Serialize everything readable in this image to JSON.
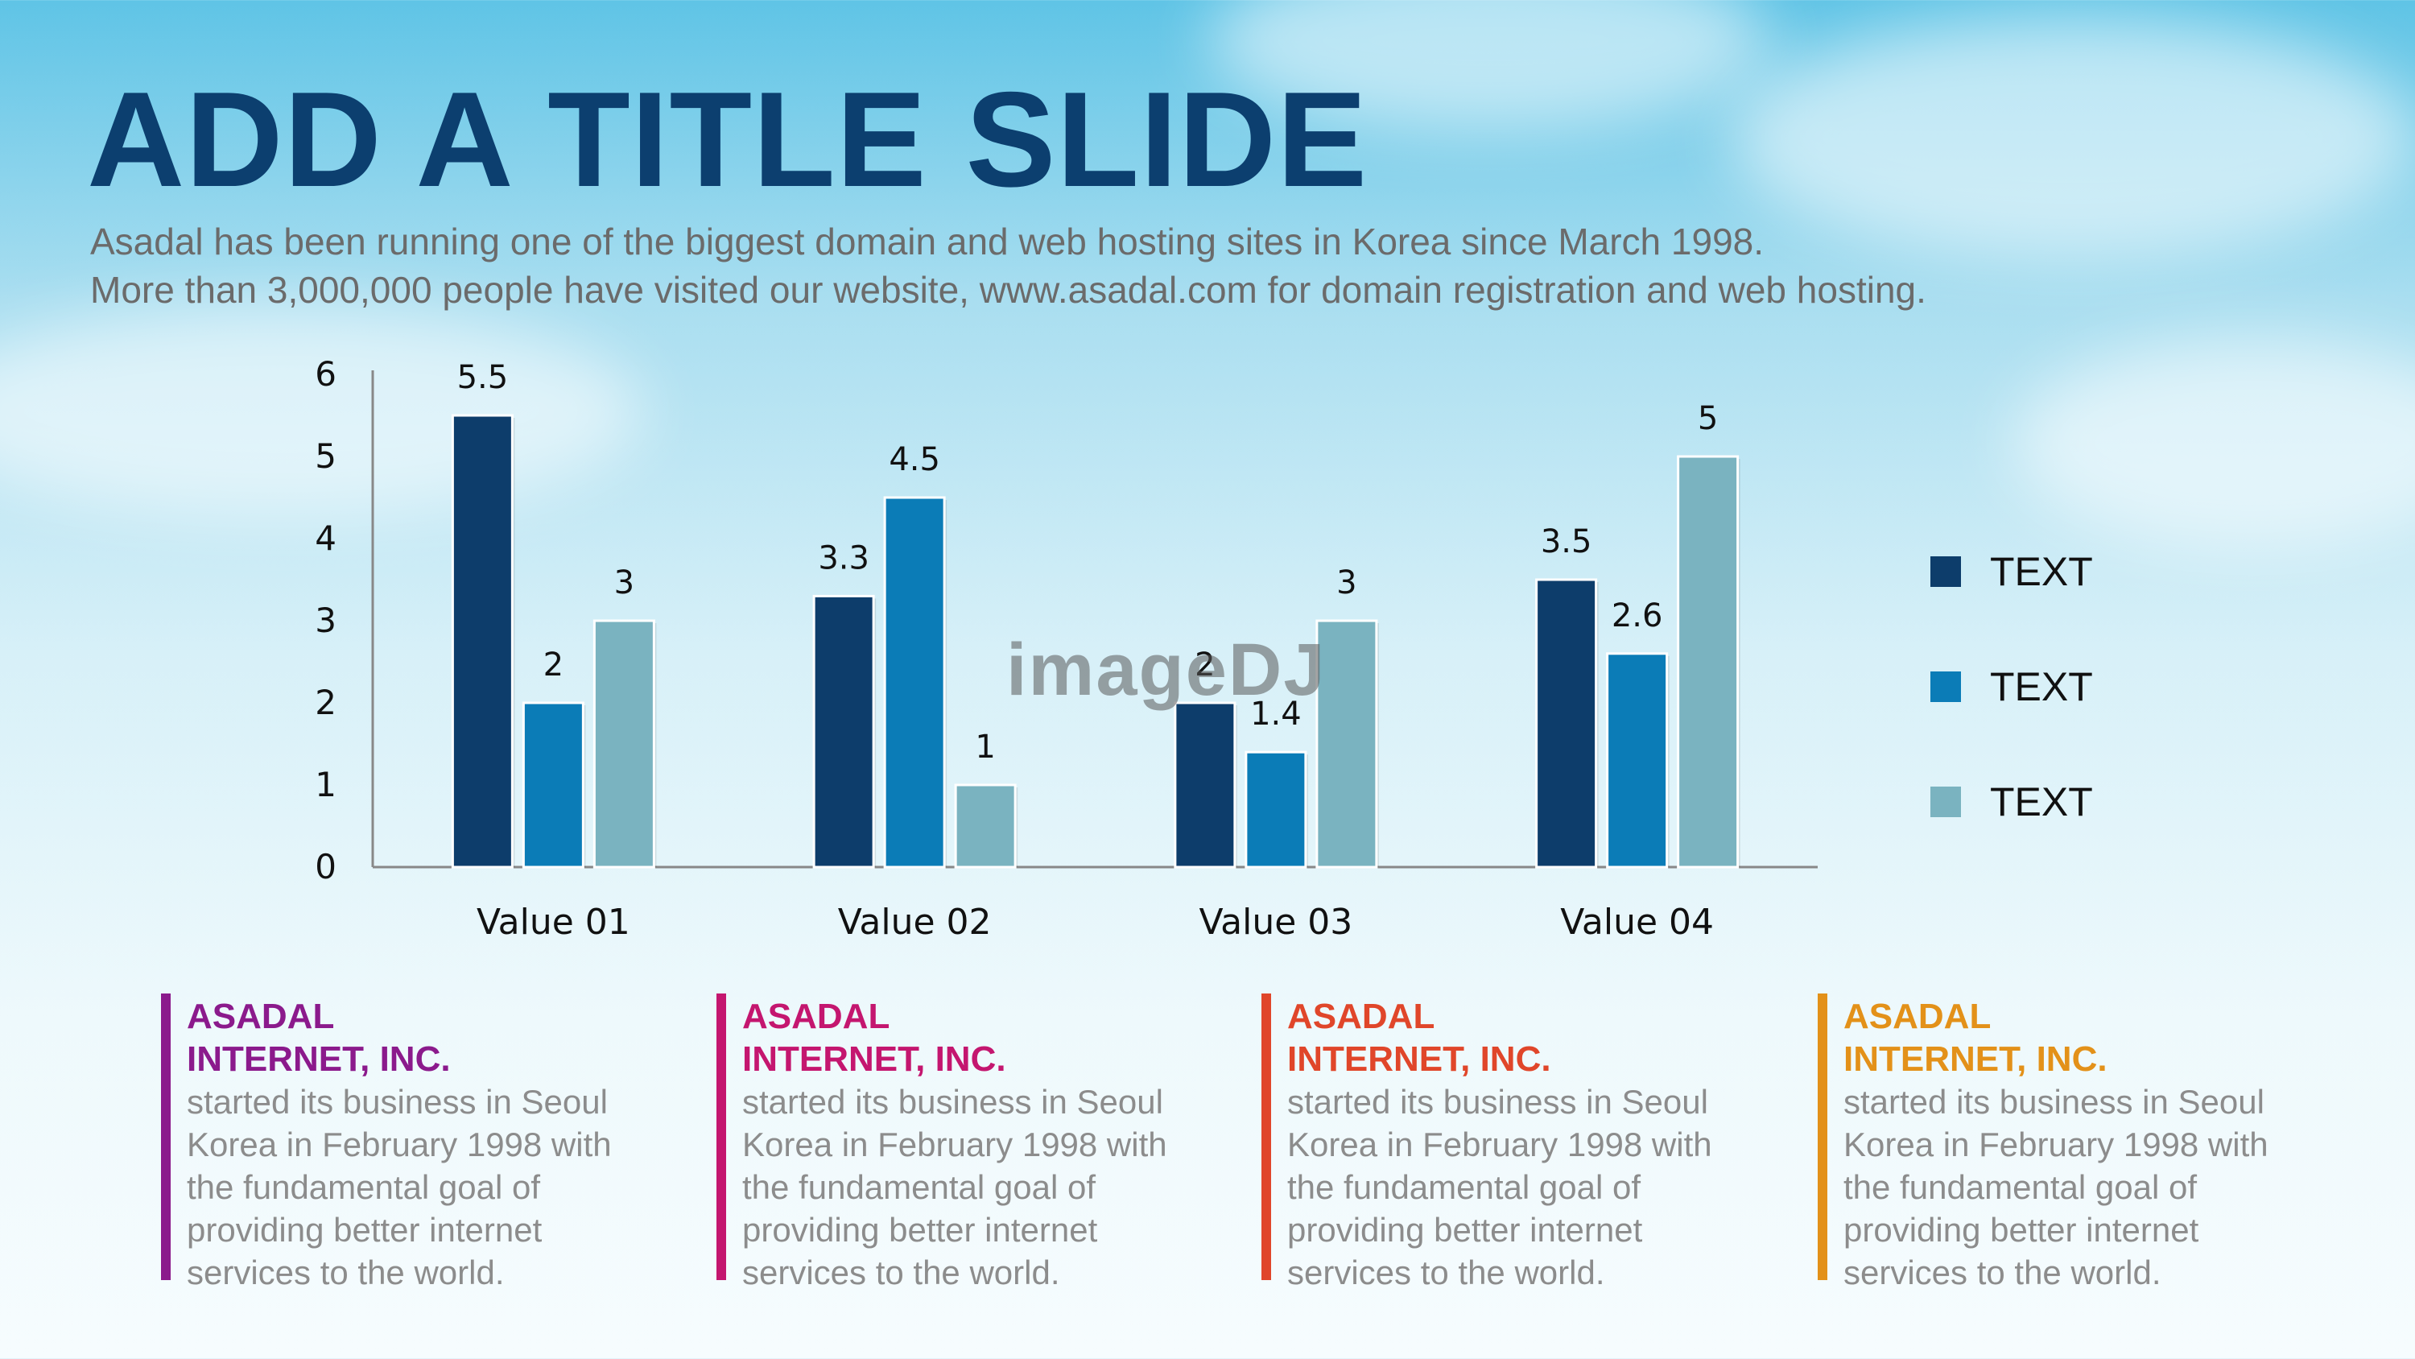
{
  "slide": {
    "title": "ADD A TITLE SLIDE",
    "subtitle_lines": [
      "Asadal has been running one of the biggest domain and web hosting sites in Korea since March 1998.",
      "More than 3,000,000 people have visited our website, www.asadal.com for domain registration and web hosting."
    ]
  },
  "chart_data": {
    "type": "bar",
    "categories": [
      "Value 01",
      "Value 02",
      "Value 03",
      "Value 04"
    ],
    "series": [
      {
        "name": "TEXT",
        "values": [
          5.5,
          3.3,
          2,
          3.5
        ],
        "color": "#0d3d6b"
      },
      {
        "name": "TEXT",
        "values": [
          2,
          4.5,
          1.4,
          2.6
        ],
        "color": "#0b7cb7"
      },
      {
        "name": "TEXT",
        "values": [
          3,
          1,
          3,
          5
        ],
        "color": "#7ab3c0"
      }
    ],
    "data_labels": [
      [
        "5.5",
        "3.3",
        "2",
        "3.5"
      ],
      [
        "2",
        "4.5",
        "1.4",
        "2.6"
      ],
      [
        "3",
        "1",
        "3",
        "5"
      ]
    ],
    "y_ticks": [
      "0",
      "1",
      "2",
      "3",
      "4",
      "5",
      "6"
    ],
    "ylim": [
      0,
      6
    ],
    "grid": false,
    "legend_position": "right"
  },
  "watermark": "imageDJ",
  "blocks": [
    {
      "heading": "ASADAL\nINTERNET, INC.",
      "body": "started its business in Seoul\nKorea  in February 1998 with\nthe fundamental goal of\nproviding better internet\nservices to the world.",
      "color": "#8b1a8c"
    },
    {
      "heading": "ASADAL\nINTERNET, INC.",
      "body": "started its business in Seoul\nKorea  in February 1998 with\nthe fundamental goal of\nproviding better internet\nservices to the world.",
      "color": "#c4166f"
    },
    {
      "heading": "ASADAL\nINTERNET, INC.",
      "body": "started its business in Seoul\nKorea  in February 1998 with\nthe fundamental goal of\nproviding better internet\nservices to the world.",
      "color": "#e0462a"
    },
    {
      "heading": "ASADAL\nINTERNET, INC.",
      "body": "started its business in Seoul\nKorea  in February 1998 with\nthe fundamental goal of\nproviding better internet\nservices to the world.",
      "color": "#e39119"
    }
  ]
}
